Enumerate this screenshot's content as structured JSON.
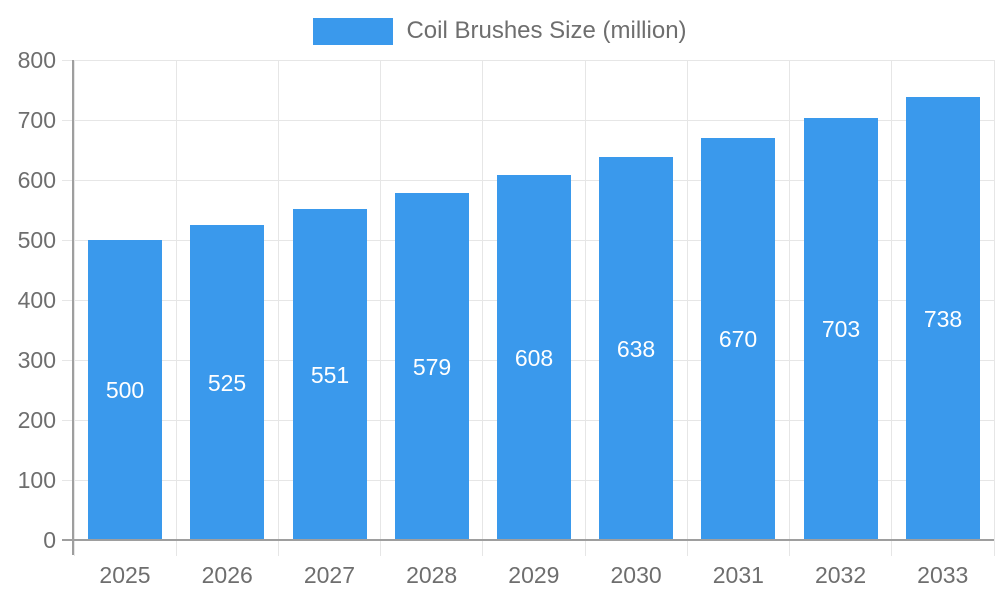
{
  "chart_data": {
    "type": "bar",
    "legend": {
      "position": "top",
      "items": [
        {
          "label": "Coil Brushes Size (million)",
          "color": "#3a99ec"
        }
      ]
    },
    "categories": [
      "2025",
      "2026",
      "2027",
      "2028",
      "2029",
      "2030",
      "2031",
      "2032",
      "2033"
    ],
    "series": [
      {
        "name": "Coil Brushes Size (million)",
        "color": "#3a99ec",
        "values": [
          500,
          525,
          551,
          579,
          608,
          638,
          670,
          703,
          738
        ]
      }
    ],
    "xlabel": "",
    "ylabel": "",
    "ylim": [
      0,
      800
    ],
    "ytick_interval": 100,
    "ytick_labels": [
      "0",
      "100",
      "200",
      "300",
      "400",
      "500",
      "600",
      "700",
      "800"
    ],
    "grid": "both",
    "value_labels": {
      "visible": true,
      "position": "center",
      "color": "#ffffff"
    }
  },
  "styles": {
    "bar_color": "#3a99ec",
    "axis_line_color": "#9e9e9e",
    "grid_color": "#e6e6e6",
    "tick_label_color": "#6e6e6e",
    "legend_text_color": "#6e6e6e",
    "background": "#ffffff"
  }
}
